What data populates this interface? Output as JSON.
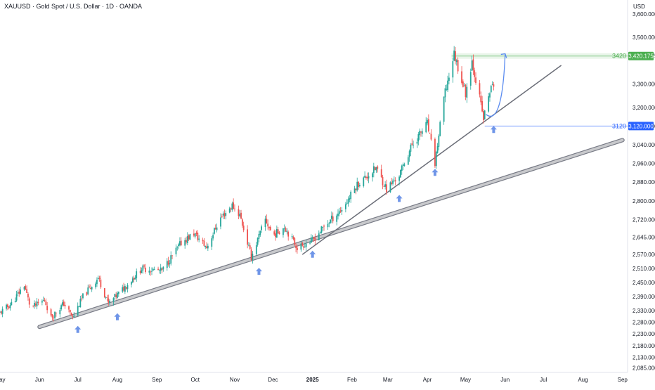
{
  "header": {
    "title": "XAUUSD · Gold Spot / U.S. Dollar · 1D · OANDA",
    "currency": "USD"
  },
  "colors": {
    "up": "#26a69a",
    "down": "#ef5350",
    "green_level": "#4caf50",
    "blue_level": "#2962ff",
    "trendline": "#787b86",
    "arrow": "#6f95e8",
    "curve": "#5b8cf0"
  },
  "chart_data": {
    "type": "candlestick",
    "title": "XAUUSD · Gold Spot / U.S. Dollar · 1D · OANDA",
    "ylabel": "USD",
    "ylim": [
      2065,
      3660
    ],
    "xlim": [
      "2024-05-01",
      "2025-09-05"
    ],
    "y_ticks": [
      "3,600.000",
      "3,500.000",
      "3,420.175",
      "3,300.000",
      "3,200.000",
      "3,120.000",
      "3,040.000",
      "2,960.000",
      "2,880.000",
      "2,800.000",
      "2,720.000",
      "2,645.000",
      "2,570.000",
      "2,510.000",
      "2,450.000",
      "2,390.000",
      "2,330.000",
      "2,280.000",
      "2,230.000",
      "2,180.000",
      "2,130.000",
      "2,085.000"
    ],
    "x_ticks": [
      {
        "label": "May",
        "date": "2024-05-01"
      },
      {
        "label": "Jun",
        "date": "2024-06-01"
      },
      {
        "label": "Jul",
        "date": "2024-07-01"
      },
      {
        "label": "Aug",
        "date": "2024-08-01"
      },
      {
        "label": "Sep",
        "date": "2024-09-01"
      },
      {
        "label": "Oct",
        "date": "2024-10-01"
      },
      {
        "label": "Nov",
        "date": "2024-11-01"
      },
      {
        "label": "Dec",
        "date": "2024-12-01"
      },
      {
        "label": "2025",
        "date": "2025-01-01",
        "bold": true
      },
      {
        "label": "Feb",
        "date": "2025-02-01"
      },
      {
        "label": "Mar",
        "date": "2025-03-01"
      },
      {
        "label": "Apr",
        "date": "2025-04-01"
      },
      {
        "label": "May",
        "date": "2025-05-01"
      },
      {
        "label": "Jun",
        "date": "2025-06-01"
      },
      {
        "label": "Jul",
        "date": "2025-07-01"
      },
      {
        "label": "Aug",
        "date": "2025-08-01"
      },
      {
        "label": "Sep",
        "date": "2025-09-01"
      }
    ],
    "price_path": [
      [
        "2024-05-01",
        2320
      ],
      [
        "2024-05-10",
        2360
      ],
      [
        "2024-05-20",
        2440
      ],
      [
        "2024-05-25",
        2340
      ],
      [
        "2024-06-05",
        2375
      ],
      [
        "2024-06-10",
        2300
      ],
      [
        "2024-06-20",
        2360
      ],
      [
        "2024-06-27",
        2300
      ],
      [
        "2024-07-05",
        2390
      ],
      [
        "2024-07-17",
        2470
      ],
      [
        "2024-07-25",
        2360
      ],
      [
        "2024-08-05",
        2420
      ],
      [
        "2024-08-20",
        2510
      ],
      [
        "2024-09-05",
        2500
      ],
      [
        "2024-09-20",
        2620
      ],
      [
        "2024-09-30",
        2660
      ],
      [
        "2024-10-10",
        2600
      ],
      [
        "2024-10-20",
        2720
      ],
      [
        "2024-10-30",
        2780
      ],
      [
        "2024-11-05",
        2740
      ],
      [
        "2024-11-14",
        2560
      ],
      [
        "2024-11-25",
        2720
      ],
      [
        "2024-12-01",
        2650
      ],
      [
        "2024-12-10",
        2690
      ],
      [
        "2024-12-20",
        2600
      ],
      [
        "2025-01-01",
        2630
      ],
      [
        "2025-01-10",
        2690
      ],
      [
        "2025-01-25",
        2770
      ],
      [
        "2025-02-05",
        2870
      ],
      [
        "2025-02-20",
        2940
      ],
      [
        "2025-02-28",
        2850
      ],
      [
        "2025-03-10",
        2910
      ],
      [
        "2025-03-20",
        3040
      ],
      [
        "2025-04-01",
        3130
      ],
      [
        "2025-04-07",
        2960
      ],
      [
        "2025-04-14",
        3240
      ],
      [
        "2025-04-22",
        3430
      ],
      [
        "2025-05-01",
        3260
      ],
      [
        "2025-05-06",
        3400
      ],
      [
        "2025-05-12",
        3240
      ],
      [
        "2025-05-15",
        3150
      ],
      [
        "2025-05-20",
        3270
      ],
      [
        "2025-05-23",
        3300
      ]
    ],
    "levels": [
      {
        "label": "3420",
        "value": 3420.175,
        "badge": "3,420.175",
        "color": "#4caf50"
      },
      {
        "label": "3120",
        "value": 3120,
        "badge": "3,120.000",
        "color": "#2962ff"
      }
    ],
    "trendlines": [
      {
        "name": "long",
        "from": [
          "2024-06-01",
          2260
        ],
        "to": [
          "2025-09-01",
          3060
        ],
        "style": "thick"
      },
      {
        "name": "short",
        "from": [
          "2024-12-24",
          2570
        ],
        "to": [
          "2025-07-15",
          3380
        ],
        "style": "thin"
      }
    ],
    "arrows": [
      "2024-07-01",
      "2024-08-01",
      "2024-11-20",
      "2025-01-01",
      "2025-03-10",
      "2025-04-07",
      "2025-05-23"
    ],
    "projection": {
      "from": [
        "2025-05-17",
        3170
      ],
      "to": [
        "2025-06-01",
        3430
      ]
    }
  }
}
